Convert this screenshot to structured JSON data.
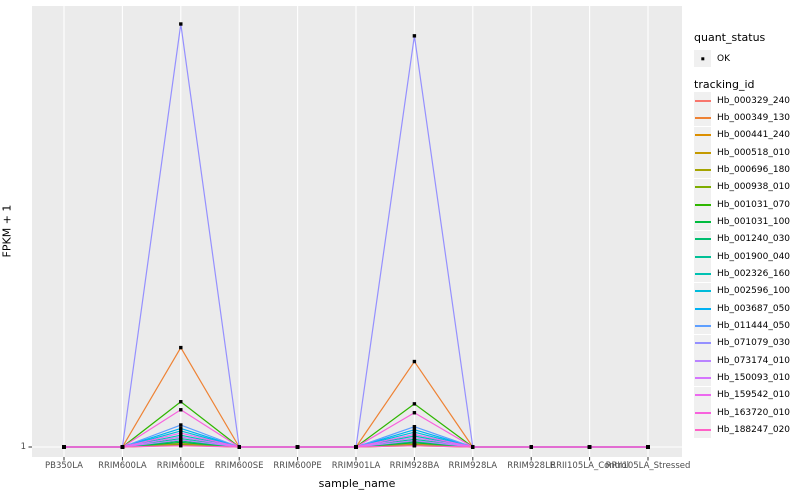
{
  "chart_data": {
    "type": "line",
    "title": "",
    "xlabel": "sample_name",
    "ylabel": "FPKM + 1",
    "categories": [
      "PB350LA",
      "RRIM600LA",
      "RRIM600LE",
      "RRIM600SE",
      "RRIM600PE",
      "RRIM901LA",
      "RRIM928BA",
      "RRIM928LA",
      "RRIM928LE",
      "RRII105LA_Control",
      "RRII105LA_Stressed"
    ],
    "y_axis": {
      "tick_labels": [
        "1"
      ],
      "note": "Only the value 1 is labeled on the y axis; series values below are relative heights (fraction of the tallest spike above the y=1 baseline)."
    },
    "legends": {
      "quant_status": {
        "title": "quant_status",
        "items": [
          {
            "label": "OK",
            "marker": "black-point"
          }
        ]
      },
      "tracking_id": {
        "title": "tracking_id"
      }
    },
    "series": [
      {
        "name": "Hb_000329_240",
        "color": "#F8766D",
        "values": [
          0,
          0,
          0.009,
          0,
          0,
          0,
          0.008,
          0,
          0,
          0,
          0
        ]
      },
      {
        "name": "Hb_000349_130",
        "color": "#EE8234",
        "values": [
          0,
          0,
          0.235,
          0,
          0,
          0,
          0.202,
          0,
          0,
          0,
          0
        ]
      },
      {
        "name": "Hb_000441_240",
        "color": "#DC8F00",
        "values": [
          0,
          0,
          0.007,
          0,
          0,
          0,
          0.006,
          0,
          0,
          0,
          0
        ]
      },
      {
        "name": "Hb_000518_010",
        "color": "#C49A00",
        "values": [
          0,
          0,
          0.005,
          0,
          0,
          0,
          0.004,
          0,
          0,
          0,
          0
        ]
      },
      {
        "name": "Hb_000696_180",
        "color": "#A5A400",
        "values": [
          0,
          0,
          0.004,
          0,
          0,
          0,
          0.003,
          0,
          0,
          0,
          0
        ]
      },
      {
        "name": "Hb_000938_010",
        "color": "#7EAD00",
        "values": [
          0,
          0,
          0.006,
          0,
          0,
          0,
          0.005,
          0,
          0,
          0,
          0
        ]
      },
      {
        "name": "Hb_001031_070",
        "color": "#2FB600",
        "values": [
          0,
          0,
          0.107,
          0,
          0,
          0,
          0.102,
          0,
          0,
          0,
          0
        ]
      },
      {
        "name": "Hb_001031_100",
        "color": "#00BB3E",
        "values": [
          0,
          0,
          0.011,
          0,
          0,
          0,
          0.01,
          0,
          0,
          0,
          0
        ]
      },
      {
        "name": "Hb_001240_030",
        "color": "#00BE70",
        "values": [
          0,
          0,
          0.014,
          0,
          0,
          0,
          0.013,
          0,
          0,
          0,
          0
        ]
      },
      {
        "name": "Hb_001900_040",
        "color": "#00C096",
        "values": [
          0,
          0,
          0.02,
          0,
          0,
          0,
          0.018,
          0,
          0,
          0,
          0
        ]
      },
      {
        "name": "Hb_002326_160",
        "color": "#00C1B2",
        "values": [
          0,
          0,
          0.028,
          0,
          0,
          0,
          0.026,
          0,
          0,
          0,
          0
        ]
      },
      {
        "name": "Hb_002596_100",
        "color": "#00BBDA",
        "values": [
          0,
          0,
          0.038,
          0,
          0,
          0,
          0.035,
          0,
          0,
          0,
          0
        ]
      },
      {
        "name": "Hb_003687_050",
        "color": "#00B1F3",
        "values": [
          0,
          0,
          0.044,
          0,
          0,
          0,
          0.041,
          0,
          0,
          0,
          0
        ]
      },
      {
        "name": "Hb_011444_050",
        "color": "#5E9FFF",
        "values": [
          0,
          0,
          0.052,
          0,
          0,
          0,
          0.048,
          0,
          0,
          0,
          0
        ]
      },
      {
        "name": "Hb_071079_030",
        "color": "#9590FF",
        "values": [
          0,
          0,
          1.0,
          0,
          0,
          0,
          0.972,
          0,
          0,
          0,
          0
        ]
      },
      {
        "name": "Hb_073174_010",
        "color": "#B983FF",
        "values": [
          0,
          0,
          0.017,
          0,
          0,
          0,
          0.015,
          0,
          0,
          0,
          0
        ]
      },
      {
        "name": "Hb_150093_010",
        "color": "#D575FE",
        "values": [
          0,
          0,
          0.024,
          0,
          0,
          0,
          0.022,
          0,
          0,
          0,
          0
        ]
      },
      {
        "name": "Hb_159542_010",
        "color": "#EC69EF",
        "values": [
          0,
          0,
          0.033,
          0,
          0,
          0,
          0.03,
          0,
          0,
          0,
          0
        ]
      },
      {
        "name": "Hb_163720_010",
        "color": "#F862DD",
        "values": [
          0,
          0,
          0.088,
          0,
          0,
          0,
          0.081,
          0,
          0,
          0,
          0
        ]
      },
      {
        "name": "Hb_188247_020",
        "color": "#FF61C7",
        "values": [
          0,
          0,
          0.003,
          0,
          0,
          0,
          0.003,
          0,
          0,
          0,
          0
        ]
      }
    ],
    "layout": {
      "panel_bg": "#EBEBEB",
      "grid_color": "#FFFFFF",
      "point_color": "#000000",
      "legend_key_bg": "#F0F0F0",
      "tick_color": "#333333",
      "tick_label_color": "#4D4D4D",
      "legend_position": "right",
      "grid": "vertical major gridline per category plus horizontal gridline at y=1"
    }
  }
}
